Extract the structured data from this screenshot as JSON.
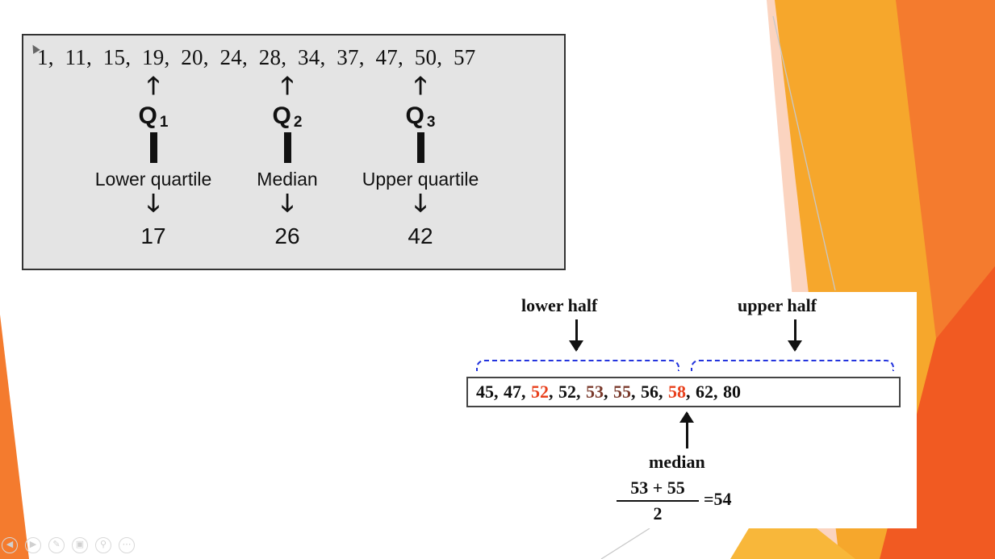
{
  "colors": {
    "accent_orange": "#f2672a",
    "accent_amber": "#f7a52b",
    "highlight_red": "#e8401c",
    "highlight_brown": "#7a3a2c",
    "brace_blue": "#2233dd"
  },
  "quartiles": {
    "data_line": "1,  11,  15,  19,  20,  24,  28,  34,  37,  47,  50,  57",
    "columns": [
      {
        "q": "Q",
        "sub": "1",
        "label": "Lower quartile",
        "value": "17"
      },
      {
        "q": "Q",
        "sub": "2",
        "label": "Median",
        "value": "26"
      },
      {
        "q": "Q",
        "sub": "3",
        "label": "Upper quartile",
        "value": "42"
      }
    ],
    "arrow_up": "🡑",
    "arrow_down": "🡓"
  },
  "median_example": {
    "lower_label": "lower half",
    "upper_label": "upper half",
    "numbers": [
      {
        "t": "45, ",
        "c": ""
      },
      {
        "t": "47, ",
        "c": ""
      },
      {
        "t": "52",
        "c": "red"
      },
      {
        "t": ", 52, ",
        "c": ""
      },
      {
        "t": "53",
        "c": "brn"
      },
      {
        "t": ", ",
        "c": ""
      },
      {
        "t": "55",
        "c": "brn"
      },
      {
        "t": ", 56, ",
        "c": ""
      },
      {
        "t": "58",
        "c": "red"
      },
      {
        "t": ", 62, 80",
        "c": ""
      }
    ],
    "median_label": "median",
    "numerator": "53 + 55",
    "denominator": "2",
    "result": "=54"
  },
  "nav": {
    "icons": [
      "prev-icon",
      "next-icon",
      "pen-icon",
      "slides-icon",
      "zoom-icon",
      "more-icon"
    ],
    "glyphs": [
      "◀",
      "▶",
      "✎",
      "▣",
      "⚲",
      "⋯"
    ]
  }
}
